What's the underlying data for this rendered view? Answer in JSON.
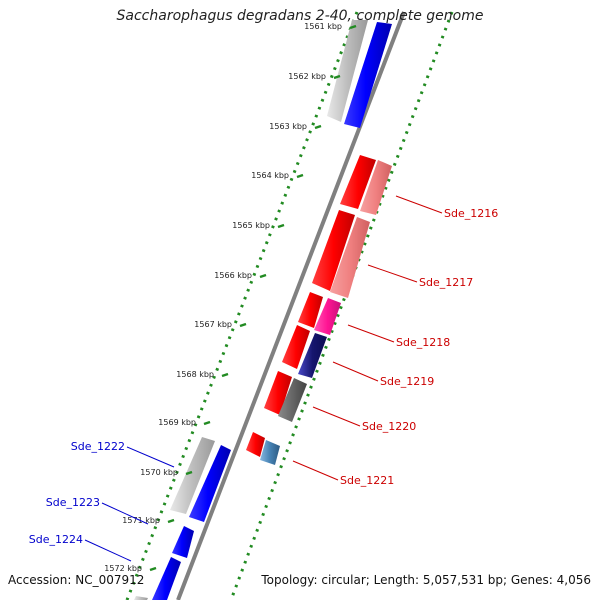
{
  "title": "Saccharophagus degradans 2-40, complete genome",
  "footer": {
    "accession": "Accession: NC_007912",
    "summary": "Topology: circular; Length: 5,057,531 bp; Genes: 4,056"
  },
  "ticks": [
    "1561 kbp",
    "1562 kbp",
    "1563 kbp",
    "1564 kbp",
    "1565 kbp",
    "1566 kbp",
    "1567 kbp",
    "1568 kbp",
    "1569 kbp",
    "1570 kbp",
    "1571 kbp",
    "1572 kbp"
  ],
  "right_labels": [
    "Sde_1216",
    "Sde_1217",
    "Sde_1218",
    "Sde_1219",
    "Sde_1220",
    "Sde_1221"
  ],
  "left_labels": [
    "Sde_1222",
    "Sde_1223",
    "Sde_1224"
  ],
  "colors": {
    "backbone": "#808080",
    "ring_dots": "#228b22",
    "forward_gene": "#0000ff",
    "reverse_gene": "#ff0000",
    "label_right": "#cc0000",
    "label_left": "#0000cc"
  }
}
